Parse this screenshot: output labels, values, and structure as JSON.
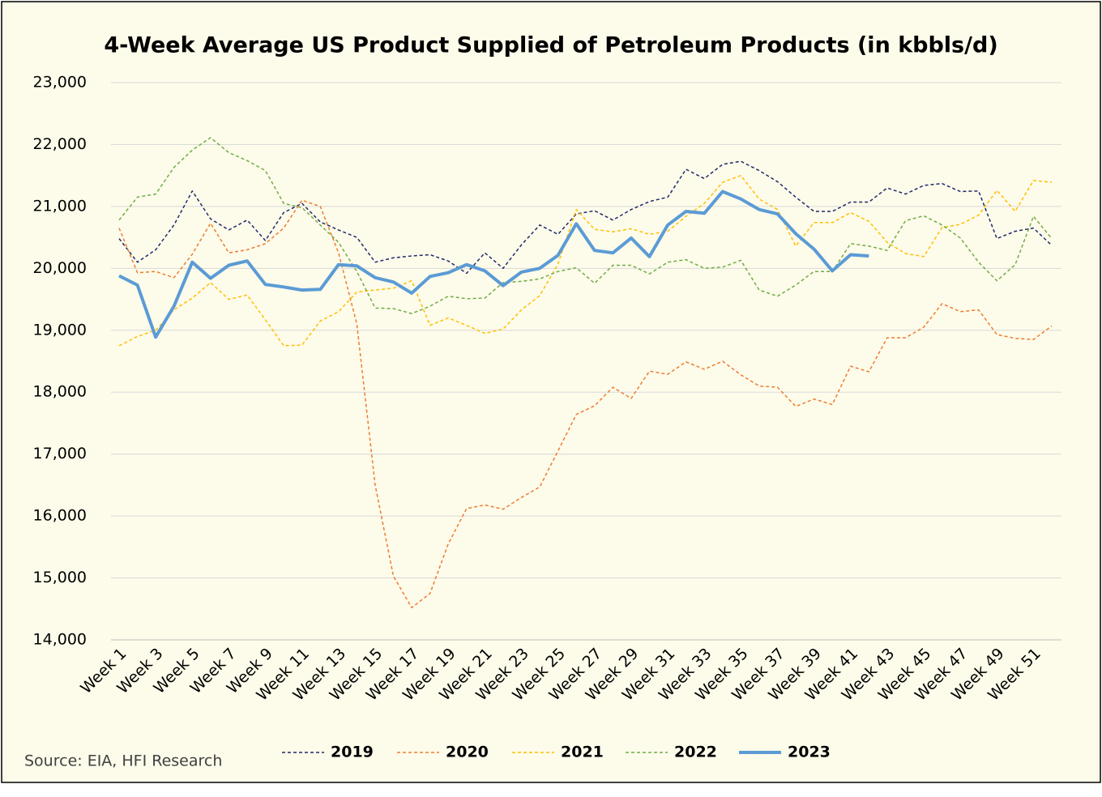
{
  "chart_data": {
    "type": "line",
    "title": "4-Week Average US Product Supplied of Petroleum Products (in kbbls/d)",
    "source": "Source: EIA, HFI Research",
    "categories": [
      "Week 1",
      null,
      "Week 3",
      null,
      "Week 5",
      null,
      "Week 7",
      null,
      "Week 9",
      null,
      "Week 11",
      null,
      "Week 13",
      null,
      "Week 15",
      null,
      "Week 17",
      null,
      "Week 19",
      null,
      "Week 21",
      null,
      "Week 23",
      null,
      "Week 25",
      null,
      "Week 27",
      null,
      "Week 29",
      null,
      "Week 31",
      null,
      "Week 33",
      null,
      "Week 35",
      null,
      "Week 37",
      null,
      "Week 39",
      null,
      "Week 41",
      null,
      "Week 43",
      null,
      "Week 45",
      null,
      "Week 47",
      null,
      "Week 49",
      null,
      "Week 51",
      null
    ],
    "ylim": [
      14000,
      23000
    ],
    "yticks": [
      {
        "value": 14000,
        "label": "14,000"
      },
      {
        "value": 15000,
        "label": "15,000"
      },
      {
        "value": 16000,
        "label": "16,000"
      },
      {
        "value": 17000,
        "label": "17,000"
      },
      {
        "value": 18000,
        "label": "18,000"
      },
      {
        "value": 19000,
        "label": "19,000"
      },
      {
        "value": 20000,
        "label": "20,000"
      },
      {
        "value": 21000,
        "label": "21,000"
      },
      {
        "value": 22000,
        "label": "22,000"
      },
      {
        "value": 23000,
        "label": "23,000"
      }
    ],
    "grid": true,
    "legend": "bottom",
    "series": [
      {
        "name": "2019",
        "color": "#1f2a6b",
        "line_style": "dashed",
        "values": [
          20480,
          20100,
          20300,
          20700,
          21250,
          20800,
          20620,
          20780,
          20450,
          20900,
          21050,
          20750,
          20620,
          20500,
          20100,
          20170,
          20200,
          20220,
          20120,
          19920,
          20250,
          20000,
          20380,
          20700,
          20550,
          20880,
          20930,
          20780,
          20950,
          21080,
          21150,
          21600,
          21450,
          21680,
          21730,
          21580,
          21400,
          21150,
          20920,
          20920,
          21070,
          21070,
          21300,
          21200,
          21340,
          21370,
          21240,
          21250,
          20480,
          20600,
          20650,
          20370
        ]
      },
      {
        "name": "2020",
        "color": "#ed7d31",
        "line_style": "dashed",
        "values": [
          20650,
          19930,
          19950,
          19850,
          20230,
          20730,
          20250,
          20300,
          20400,
          20650,
          21100,
          21000,
          20250,
          19100,
          16500,
          15030,
          14520,
          14750,
          15550,
          16120,
          16180,
          16110,
          16300,
          16470,
          17050,
          17640,
          17780,
          18080,
          17900,
          18340,
          18290,
          18490,
          18370,
          18500,
          18280,
          18100,
          18080,
          17770,
          17890,
          17800,
          18420,
          18330,
          18880,
          18880,
          19050,
          19430,
          19300,
          19330,
          18930,
          18870,
          18850,
          19070
        ]
      },
      {
        "name": "2021",
        "color": "#ffc000",
        "line_style": "dashed",
        "values": [
          18750,
          18900,
          19000,
          19330,
          19520,
          19770,
          19500,
          19570,
          19170,
          18750,
          18760,
          19150,
          19300,
          19620,
          19650,
          19680,
          19800,
          19080,
          19200,
          19080,
          18950,
          19020,
          19330,
          19560,
          20070,
          20950,
          20630,
          20590,
          20640,
          20550,
          20600,
          20840,
          21050,
          21390,
          21500,
          21120,
          20950,
          20360,
          20740,
          20740,
          20900,
          20760,
          20420,
          20240,
          20190,
          20660,
          20710,
          20860,
          21260,
          20920,
          21420,
          21390
        ]
      },
      {
        "name": "2022",
        "color": "#70ad47",
        "line_style": "dashed",
        "values": [
          20780,
          21150,
          21200,
          21630,
          21910,
          22110,
          21870,
          21740,
          21580,
          21050,
          20980,
          20700,
          20420,
          19950,
          19360,
          19350,
          19270,
          19390,
          19550,
          19510,
          19520,
          19770,
          19790,
          19830,
          19950,
          20010,
          19760,
          20050,
          20050,
          19910,
          20100,
          20140,
          20000,
          20020,
          20130,
          19650,
          19550,
          19730,
          19950,
          19950,
          20400,
          20360,
          20290,
          20770,
          20850,
          20700,
          20490,
          20100,
          19800,
          20060,
          20840,
          20480
        ]
      },
      {
        "name": "2023",
        "color": "#5b9bd5",
        "line_style": "solid",
        "values": [
          19880,
          19730,
          18890,
          19390,
          20100,
          19840,
          20050,
          20120,
          19740,
          19700,
          19650,
          19660,
          20060,
          20040,
          19850,
          19780,
          19600,
          19870,
          19930,
          20060,
          19960,
          19720,
          19940,
          20000,
          20210,
          20720,
          20290,
          20250,
          20490,
          20190,
          20700,
          20920,
          20890,
          21240,
          21120,
          20950,
          20880,
          20560,
          20310,
          19960,
          20220,
          20200,
          null,
          null,
          null,
          null,
          null,
          null,
          null,
          null,
          null,
          null
        ]
      }
    ]
  }
}
